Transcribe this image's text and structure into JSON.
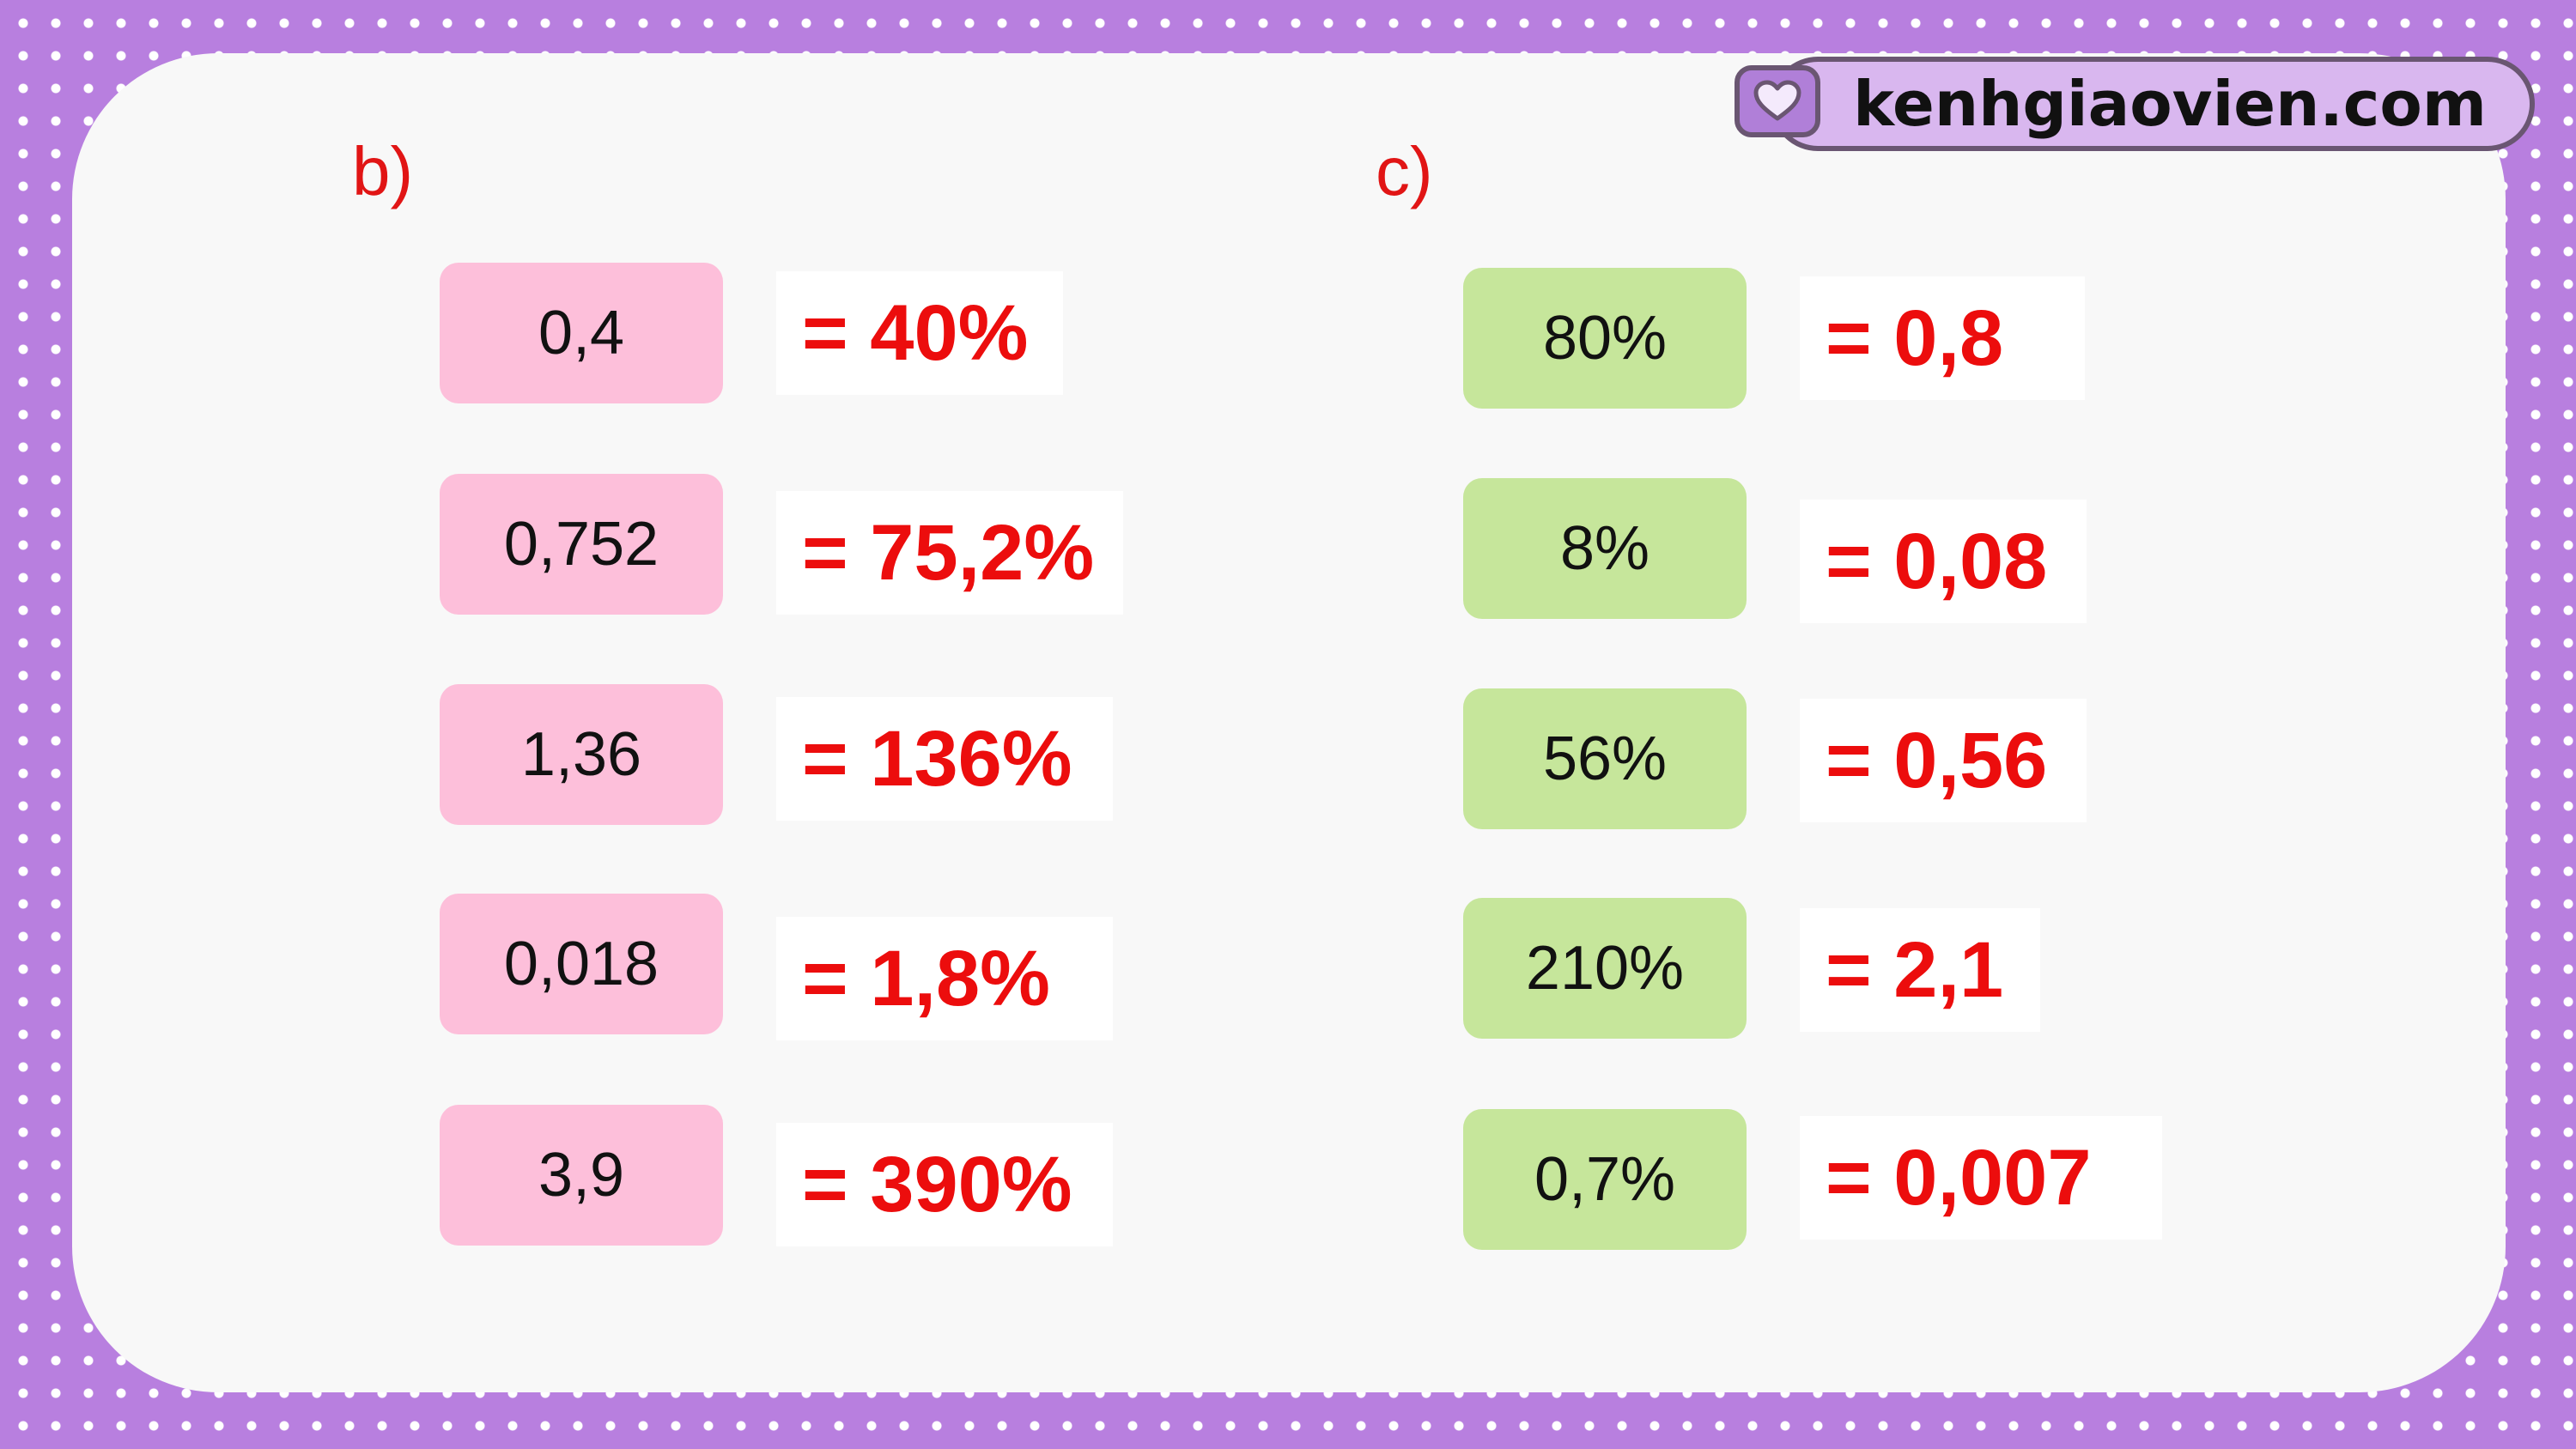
{
  "brand": {
    "text": "kenhgiaovien.com",
    "icon": "heart-icon"
  },
  "section_b": {
    "label": "b)",
    "rows": [
      {
        "value": "0,4",
        "answer": "= 40%"
      },
      {
        "value": "0,752",
        "answer": "= 75,2%"
      },
      {
        "value": "1,36",
        "answer": "= 136%"
      },
      {
        "value": "0,018",
        "answer": "= 1,8%"
      },
      {
        "value": "3,9",
        "answer": "= 390%"
      }
    ]
  },
  "section_c": {
    "label": "c)",
    "rows": [
      {
        "value": "80%",
        "answer": "= 0,8"
      },
      {
        "value": "8%",
        "answer": "= 0,08"
      },
      {
        "value": "56%",
        "answer": "= 0,56"
      },
      {
        "value": "210%",
        "answer": "= 2,1"
      },
      {
        "value": "0,7%",
        "answer": "= 0,007"
      }
    ]
  },
  "colors": {
    "background": "#b87fdf",
    "card": "#f8f8f8",
    "pink_box": "#fdbfda",
    "green_box": "#c6e69b",
    "answer_text": "#ec0d0d",
    "label_text": "#e11515"
  }
}
